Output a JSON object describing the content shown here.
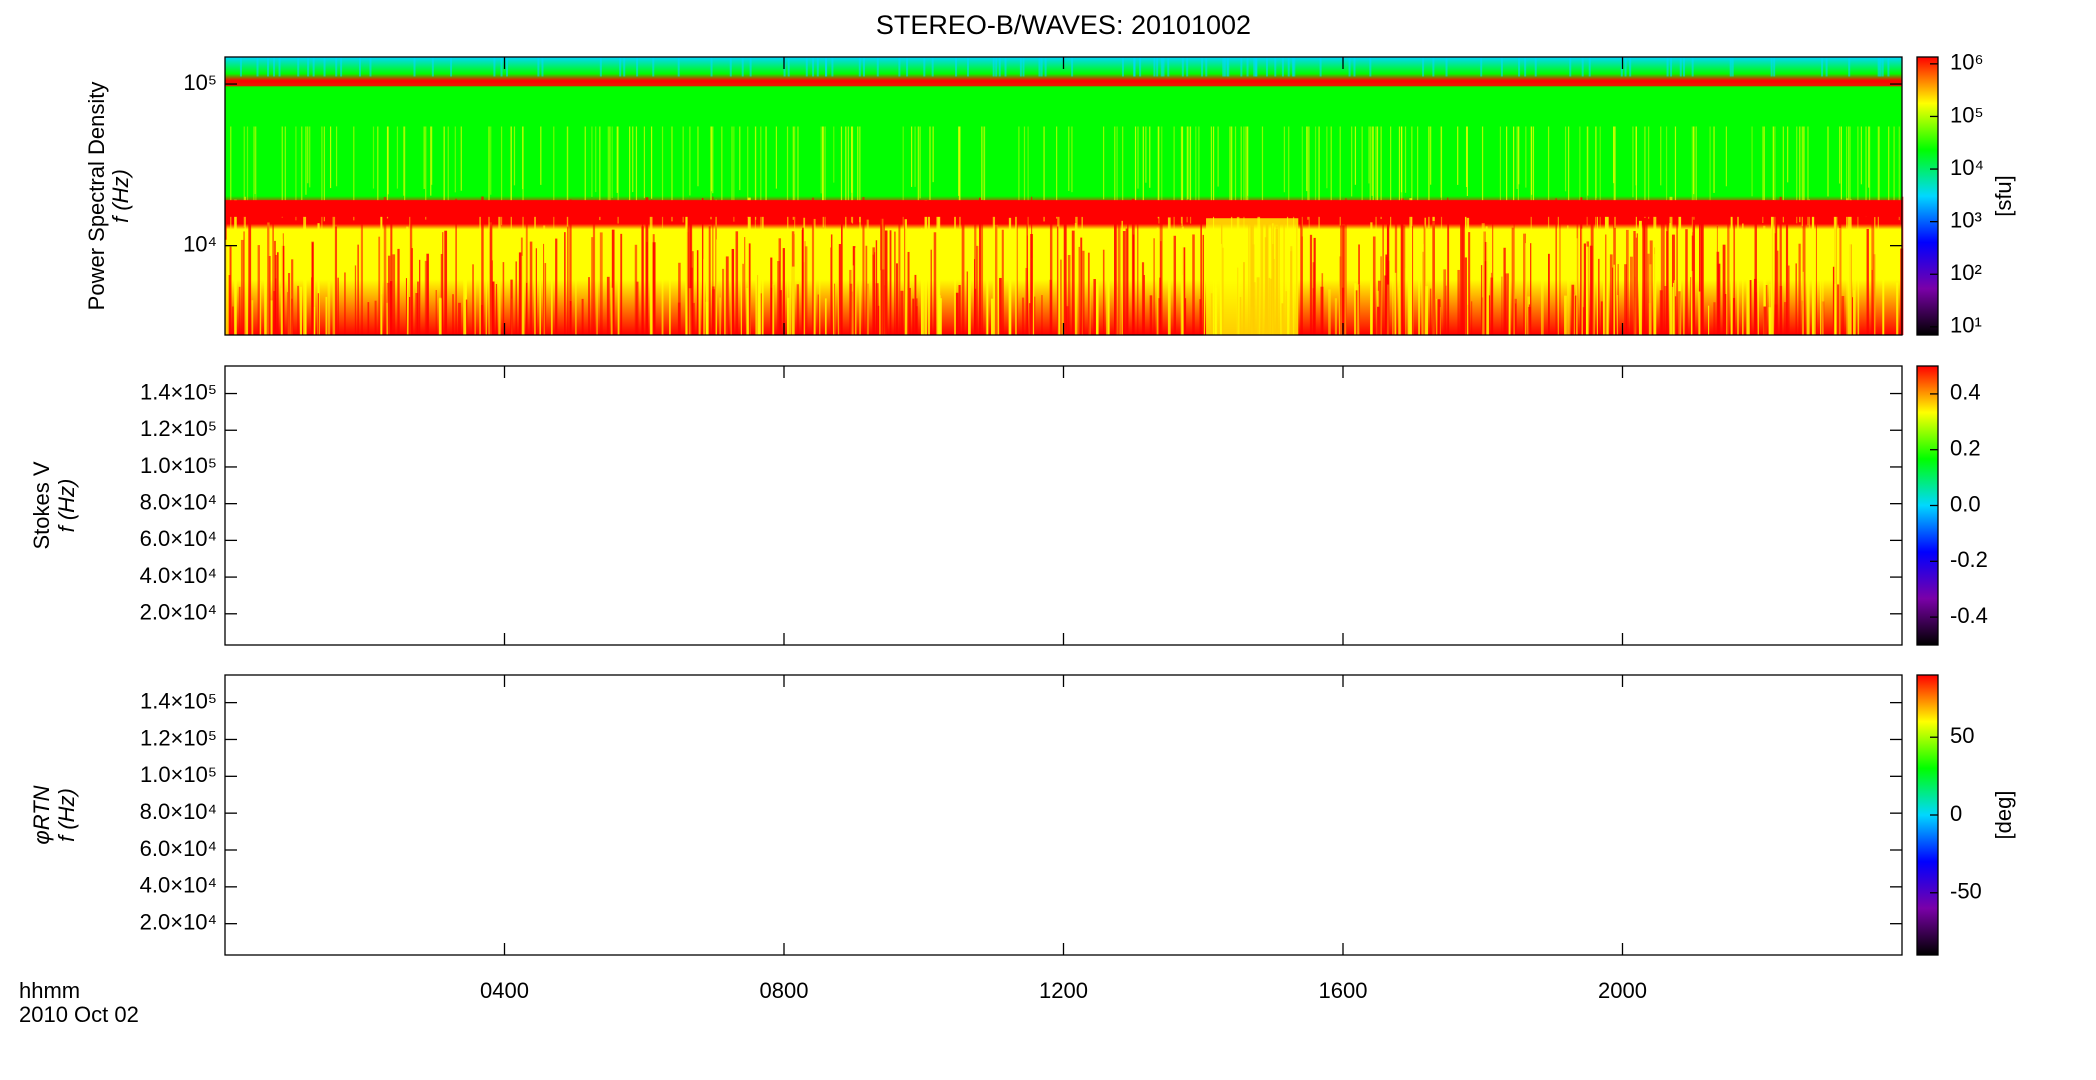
{
  "chart_data": [
    {
      "type": "heatmap",
      "title": "STEREO-B/WAVES: 20101002",
      "ylabel": [
        "Power Spectral Density",
        "f (Hz)"
      ],
      "ylog": true,
      "ylim": [
        2800,
        147000
      ],
      "yticks": [
        {
          "value": 10000,
          "label": "10⁴"
        },
        {
          "value": 100000,
          "label": "10⁵"
        }
      ],
      "zlog": true,
      "zlim": [
        7,
        1350000
      ],
      "zticks": [
        {
          "value": 10,
          "label": "10¹"
        },
        {
          "value": 100,
          "label": "10²"
        },
        {
          "value": 1000,
          "label": "10³"
        },
        {
          "value": 10000,
          "label": "10⁴"
        },
        {
          "value": 100000,
          "label": "10⁵"
        },
        {
          "value": 1000000,
          "label": "10⁶"
        }
      ],
      "zlabel": "[sfu]",
      "colormap": [
        "#000000",
        "#7a00a8",
        "#0000ff",
        "#00d8ff",
        "#00ff00",
        "#ffff00",
        "#ff0000"
      ]
    },
    {
      "type": "heatmap",
      "ylabel": [
        "Stokes V",
        "f (Hz)"
      ],
      "ylim": [
        3000,
        155000
      ],
      "yticks": [
        {
          "value": 20000,
          "label": "2.0×10⁴"
        },
        {
          "value": 40000,
          "label": "4.0×10⁴"
        },
        {
          "value": 60000,
          "label": "6.0×10⁴"
        },
        {
          "value": 80000,
          "label": "8.0×10⁴"
        },
        {
          "value": 100000,
          "label": "1.0×10⁵"
        },
        {
          "value": 120000,
          "label": "1.2×10⁵"
        },
        {
          "value": 140000,
          "label": "1.4×10⁵"
        }
      ],
      "zlim": [
        -0.5,
        0.5
      ],
      "zticks": [
        -0.4,
        -0.2,
        {
          "value": 0,
          "label": "0.0"
        },
        0.2,
        0.4
      ],
      "colormap": [
        "#000000",
        "#7a00a8",
        "#0000ff",
        "#00d8ff",
        "#00ff00",
        "#ffff00",
        "#ff0000"
      ]
    },
    {
      "type": "heatmap",
      "ylabel": [
        "φRTN",
        "f (Hz)"
      ],
      "ylim": [
        3000,
        155000
      ],
      "yticks": [
        {
          "value": 20000,
          "label": "2.0×10⁴"
        },
        {
          "value": 40000,
          "label": "4.0×10⁴"
        },
        {
          "value": 60000,
          "label": "6.0×10⁴"
        },
        {
          "value": 80000,
          "label": "8.0×10⁴"
        },
        {
          "value": 100000,
          "label": "1.0×10⁵"
        },
        {
          "value": 120000,
          "label": "1.2×10⁵"
        },
        {
          "value": 140000,
          "label": "1.4×10⁵"
        }
      ],
      "zlim": [
        -90,
        90
      ],
      "zticks": [
        -50,
        0,
        50
      ],
      "zlabel": "[deg]",
      "colormap": [
        "#000000",
        "#7a00a8",
        "#0000ff",
        "#00d8ff",
        "#00ff00",
        "#ffff00",
        "#ff0000"
      ],
      "xlim": [
        0,
        24
      ],
      "xticks": [
        {
          "value": 4,
          "label": "0400"
        },
        {
          "value": 8,
          "label": "0800"
        },
        {
          "value": 12,
          "label": "1200"
        },
        {
          "value": 16,
          "label": "1600"
        },
        {
          "value": 20,
          "label": "2000"
        }
      ],
      "xlabel": [
        "hhmm",
        "2010 Oct 02"
      ]
    }
  ]
}
